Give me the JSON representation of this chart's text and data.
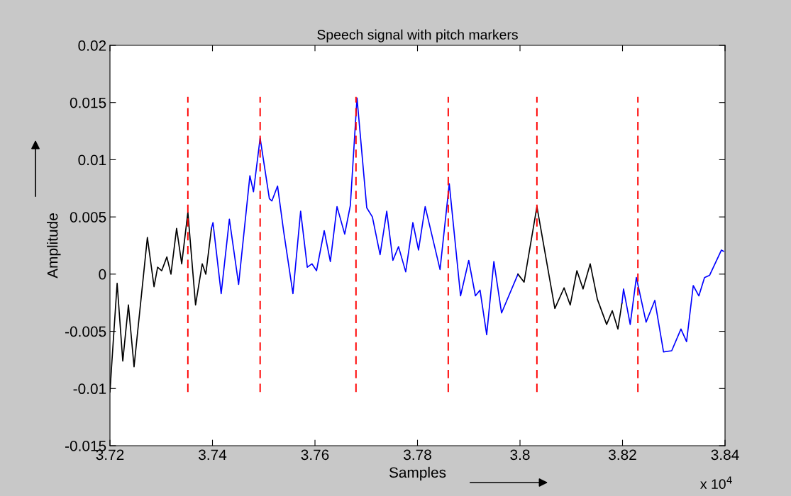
{
  "chart_data": {
    "type": "line",
    "title": "Speech signal with pitch markers",
    "xlabel": "Samples",
    "ylabel": "Amplitude",
    "xlim": [
      3.72,
      3.84
    ],
    "xticks": [
      3.72,
      3.74,
      3.76,
      3.78,
      3.8,
      3.82,
      3.84
    ],
    "ylim": [
      -0.015,
      0.02
    ],
    "yticks": [
      -0.015,
      -0.01,
      -0.005,
      0,
      0.005,
      0.01,
      0.015,
      0.02
    ],
    "annotations": [
      "x 10$^{4}$"
    ],
    "grid": false,
    "legend": false,
    "marker": "none",
    "series": [
      {
        "color": "#000000",
        "x": [
          3.72,
          3.7203,
          3.7214,
          3.7225,
          3.7236,
          3.7247,
          3.7273,
          3.7286,
          3.7293,
          3.7301,
          3.7311,
          3.7319,
          3.733,
          3.734,
          3.7352,
          3.7367,
          3.738,
          3.7387,
          3.7398
        ],
        "values": [
          -0.0103,
          -0.0082,
          -0.0008,
          -0.0076,
          -0.0027,
          -0.0081,
          0.0032,
          -0.0011,
          0.0006,
          0.0003,
          0.0015,
          0.0,
          0.004,
          0.0009,
          0.0054,
          -0.0027,
          0.0009,
          0.0,
          0.004
        ]
      },
      {
        "color": "#0000ff",
        "x": [
          3.7398,
          3.7401,
          3.7417,
          3.7433,
          3.7451,
          3.7473,
          3.748,
          3.7493,
          3.7511,
          3.7516,
          3.7527,
          3.7539,
          3.7557,
          3.7572,
          3.7585,
          3.7594,
          3.7603,
          3.7618,
          3.763,
          3.7643,
          3.7658,
          3.7669,
          3.7682,
          3.7701,
          3.7712,
          3.7727,
          3.774,
          3.7752,
          3.7763,
          3.7777,
          3.7791,
          3.7802,
          3.7815,
          3.7844,
          3.7862,
          3.7884,
          3.79,
          3.7913,
          3.7922,
          3.7935,
          3.7949,
          3.7964,
          3.7996
        ],
        "values": [
          0.004,
          0.0045,
          -0.0017,
          0.0048,
          -0.0009,
          0.0086,
          0.0072,
          0.0119,
          0.0066,
          0.0064,
          0.0077,
          0.0037,
          -0.0017,
          0.0055,
          0.0006,
          0.0009,
          0.0003,
          0.0038,
          0.0011,
          0.0059,
          0.0035,
          0.006,
          0.0154,
          0.0058,
          0.005,
          0.0017,
          0.0055,
          0.0012,
          0.0024,
          0.0002,
          0.0045,
          0.0021,
          0.0059,
          0.0004,
          0.0079,
          -0.0019,
          0.0012,
          -0.0019,
          -0.0014,
          -0.0053,
          0.0011,
          -0.0034,
          0.0
        ]
      },
      {
        "color": "#000000",
        "x": [
          3.7996,
          3.8008,
          3.8033,
          3.8068,
          3.8086,
          3.8098,
          3.8111,
          3.8123,
          3.8137,
          3.8151,
          3.8169,
          3.818,
          3.8191,
          3.8199
        ],
        "values": [
          0.0,
          -0.0007,
          0.0059,
          -0.003,
          -0.0012,
          -0.0027,
          0.0003,
          -0.0013,
          0.0009,
          -0.0022,
          -0.0044,
          -0.0032,
          -0.0048,
          -0.0025
        ]
      },
      {
        "color": "#0000ff",
        "x": [
          3.8199,
          3.8202,
          3.8215,
          3.8227,
          3.8246,
          3.8263,
          3.828,
          3.8296,
          3.8314,
          3.8325,
          3.8338,
          3.8349,
          3.836,
          3.837,
          3.8393,
          3.8397
        ],
        "values": [
          -0.0025,
          -0.0013,
          -0.0044,
          -0.0003,
          -0.0042,
          -0.0023,
          -0.0068,
          -0.0067,
          -0.0048,
          -0.0059,
          -0.001,
          -0.0019,
          -0.0003,
          -0.0001,
          0.0021,
          0.002
        ]
      },
      {
        "color": "#ff0000",
        "line_style": "dashed",
        "x": [
          3.7352,
          3.7352
        ],
        "values": [
          -0.0103,
          0.0155
        ]
      },
      {
        "color": "#ff0000",
        "line_style": "dashed",
        "x": [
          3.7493,
          3.7493
        ],
        "values": [
          -0.0103,
          0.0155
        ]
      },
      {
        "color": "#ff0000",
        "line_style": "dashed",
        "x": [
          3.768,
          3.768
        ],
        "values": [
          -0.0103,
          0.0155
        ]
      },
      {
        "color": "#ff0000",
        "line_style": "dashed",
        "x": [
          3.786,
          3.786
        ],
        "values": [
          -0.0103,
          0.0155
        ]
      },
      {
        "color": "#ff0000",
        "line_style": "dashed",
        "x": [
          3.8033,
          3.8033
        ],
        "values": [
          -0.0103,
          0.0155
        ]
      },
      {
        "color": "#ff0000",
        "line_style": "dashed",
        "x": [
          3.823,
          3.823
        ],
        "values": [
          -0.0103,
          0.0155
        ]
      }
    ]
  }
}
